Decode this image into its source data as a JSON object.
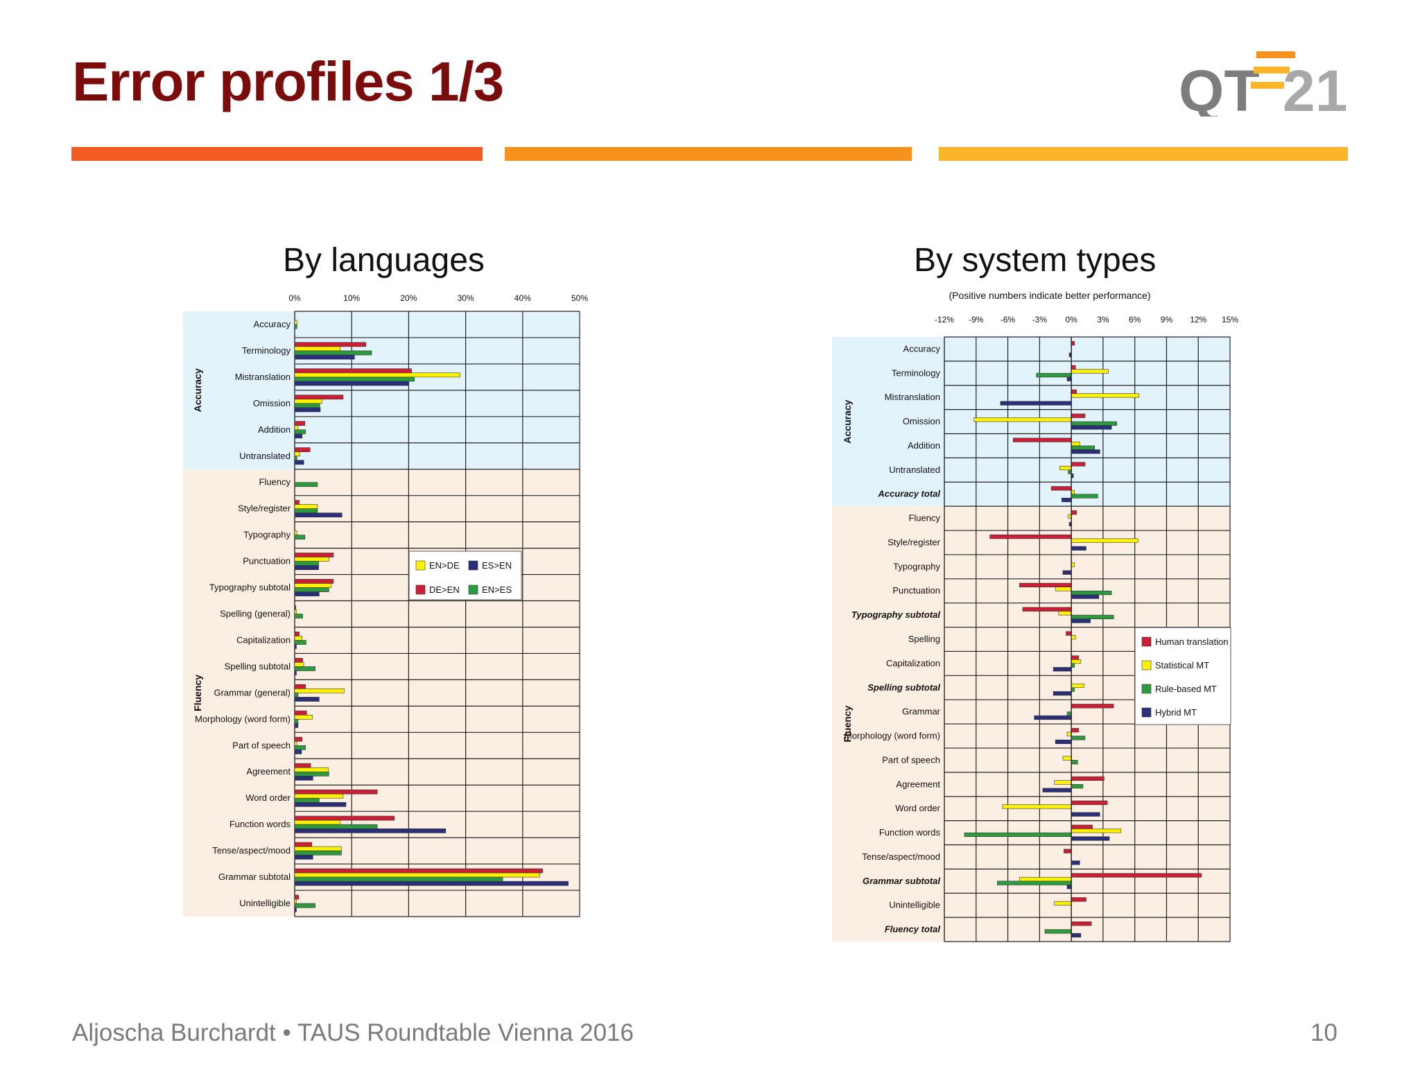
{
  "slide": {
    "title": "Error profiles 1/3",
    "footer": "Aljoscha Burchardt • TAUS Roundtable Vienna 2016",
    "page_number": "10",
    "logo_text_left": "QT",
    "logo_text_right": "21"
  },
  "colors": {
    "title": "#7b0c0c",
    "deco_bars": [
      "#f25c22",
      "#f7921e",
      "#fbb52a"
    ],
    "accuracy_bg": "#e3f3fb",
    "fluency_bg": "#fbeee2",
    "red": "#cc1f36",
    "yellow": "#fff200",
    "green": "#2e9a40",
    "navy": "#2b2f7a"
  },
  "chart_data": [
    {
      "type": "bar",
      "orientation": "horizontal",
      "title": "By languages",
      "subtitle": "",
      "xlim": [
        0,
        50
      ],
      "x_ticks": [
        "0%",
        "10%",
        "20%",
        "30%",
        "40%",
        "50%"
      ],
      "groups": [
        {
          "label": "Accuracy",
          "from": 0,
          "to": 5
        },
        {
          "label": "Fluency",
          "from": 6,
          "to": 22
        }
      ],
      "categories": [
        "Accuracy",
        "Terminology",
        "Mistranslation",
        "Omission",
        "Addition",
        "Untranslated",
        "Fluency",
        "Style/register",
        "Typography",
        "Punctuation",
        "Typography subtotal",
        "Spelling (general)",
        "Capitalization",
        "Spelling subtotal",
        "Grammar (general)",
        "Morphology (word form)",
        "Part of speech",
        "Agreement",
        "Word order",
        "Function words",
        "Tense/aspect/mood",
        "Grammar subtotal",
        "Unintelligible"
      ],
      "series": [
        {
          "name": "DE>EN",
          "color": "red",
          "values": [
            0,
            12.5,
            20.5,
            8.5,
            1.8,
            2.7,
            0,
            0.8,
            0,
            6.8,
            6.8,
            0.2,
            0.8,
            1.4,
            1.9,
            2.1,
            1.3,
            2.8,
            14.5,
            17.5,
            3.0,
            43.5,
            0.7
          ]
        },
        {
          "name": "EN>DE",
          "color": "yellow",
          "values": [
            0.4,
            8.0,
            29.0,
            4.8,
            0.6,
            0.9,
            0,
            4.0,
            0.4,
            6.0,
            6.4,
            0.3,
            1.3,
            1.6,
            8.7,
            3.1,
            0.4,
            5.9,
            8.5,
            8.0,
            8.2,
            43.0,
            0.3
          ]
        },
        {
          "name": "EN>ES",
          "color": "green",
          "values": [
            0.4,
            13.5,
            21.0,
            4.4,
            1.9,
            0.4,
            4.0,
            4.0,
            1.8,
            4.2,
            6.0,
            1.4,
            2.0,
            3.6,
            0.6,
            0.6,
            1.9,
            6.0,
            4.3,
            14.5,
            8.2,
            36.5,
            3.6
          ]
        },
        {
          "name": "ES>EN",
          "color": "navy",
          "values": [
            0,
            10.5,
            20.0,
            4.5,
            1.3,
            1.6,
            0,
            8.3,
            0,
            4.2,
            4.3,
            0,
            0.3,
            0.3,
            4.3,
            0.6,
            1.2,
            3.2,
            9.0,
            26.5,
            3.2,
            48.0,
            0.3
          ]
        }
      ],
      "legend_position": "middle-right",
      "legend": [
        {
          "name": "EN>DE",
          "color": "yellow"
        },
        {
          "name": "ES>EN",
          "color": "navy"
        },
        {
          "name": "DE>EN",
          "color": "red"
        },
        {
          "name": "EN>ES",
          "color": "green"
        }
      ],
      "grid": true
    },
    {
      "type": "bar",
      "orientation": "horizontal",
      "title": "By system types",
      "subtitle": "(Positive numbers indicate better performance)",
      "xlim": [
        -12,
        15
      ],
      "x_ticks": [
        "-12%",
        "-9%",
        "-6%",
        "-3%",
        "0%",
        "3%",
        "6%",
        "9%",
        "12%",
        "15%"
      ],
      "groups": [
        {
          "label": "Accuracy",
          "from": 0,
          "to": 6
        },
        {
          "label": "Fluency",
          "from": 7,
          "to": 24
        }
      ],
      "categories": [
        "Accuracy",
        "Terminology",
        "Mistranslation",
        "Omission",
        "Addition",
        "Untranslated",
        "Accuracy total",
        "Fluency",
        "Style/register",
        "Typography",
        "Punctuation",
        "Typography subtotal",
        "Spelling",
        "Capitalization",
        "Spelling subtotal",
        "Grammar",
        "Morphology (word form)",
        "Part of speech",
        "Agreement",
        "Word order",
        "Function words",
        "Tense/aspect/mood",
        "Grammar subtotal",
        "Unintelligible",
        "Fluency total"
      ],
      "bold_categories": [
        "Accuracy total",
        "Typography subtotal",
        "Spelling subtotal",
        "Grammar subtotal",
        "Fluency total"
      ],
      "series": [
        {
          "name": "Human translation",
          "color": "red",
          "values": [
            0.3,
            0.4,
            0.5,
            1.3,
            -5.5,
            1.3,
            -1.9,
            0.5,
            -7.7,
            0,
            -4.9,
            -4.6,
            -0.5,
            0.7,
            0,
            4.0,
            0.7,
            0,
            3.1,
            3.4,
            2.0,
            -0.7,
            12.3,
            1.4,
            1.9
          ]
        },
        {
          "name": "Statistical MT",
          "color": "yellow",
          "values": [
            0,
            3.5,
            6.4,
            -9.2,
            0.8,
            -1.1,
            0.3,
            -0.3,
            6.3,
            0.3,
            -1.5,
            -1.2,
            0.4,
            0.9,
            1.2,
            0,
            -0.4,
            -0.8,
            -1.6,
            -6.5,
            4.7,
            0,
            -4.9,
            -1.6,
            0
          ]
        },
        {
          "name": "Rule-based MT",
          "color": "green",
          "values": [
            0,
            -3.3,
            0,
            4.3,
            2.2,
            -0.3,
            2.5,
            0,
            0,
            0,
            3.8,
            4.0,
            0,
            0.3,
            0.3,
            -0.4,
            1.3,
            0.6,
            1.1,
            0,
            -10.1,
            0,
            -7.0,
            0,
            -2.5
          ]
        },
        {
          "name": "Hybrid MT",
          "color": "navy",
          "values": [
            -0.2,
            -0.4,
            -6.7,
            3.8,
            2.7,
            0.2,
            -0.9,
            -0.2,
            1.4,
            -0.8,
            2.6,
            1.8,
            0,
            -1.7,
            -1.7,
            -3.5,
            -1.5,
            0,
            -2.7,
            2.7,
            3.6,
            0.8,
            -0.4,
            0,
            0.9
          ]
        }
      ],
      "legend_position": "right",
      "legend": [
        {
          "name": "Human translation",
          "color": "red"
        },
        {
          "name": "Statistical MT",
          "color": "yellow"
        },
        {
          "name": "Rule-based MT",
          "color": "green"
        },
        {
          "name": "Hybrid MT",
          "color": "navy"
        }
      ],
      "grid": true
    }
  ]
}
